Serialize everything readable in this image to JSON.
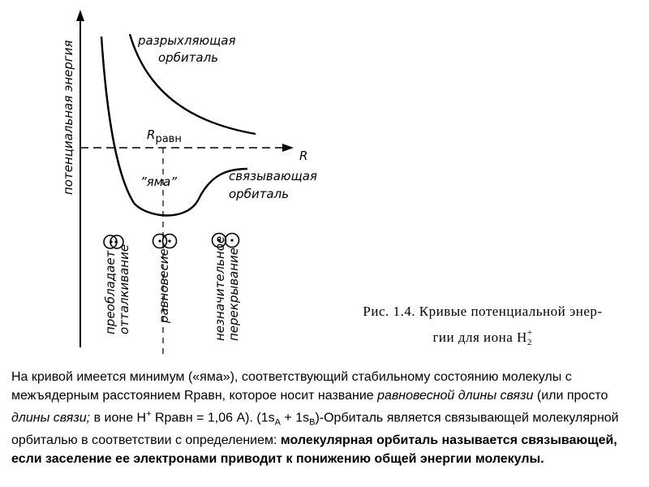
{
  "figure": {
    "y_axis_label": "потенциальная  энергия",
    "x_axis_label": "R",
    "r_eq_label": "R",
    "r_eq_sub": "равн",
    "antibonding_line1": "разрыхляющая",
    "antibonding_line2": "орбиталь",
    "bonding_line1": "связывающая",
    "bonding_line2": "орбиталь",
    "well_label": "”яма”",
    "states": [
      {
        "line1": "преобладает",
        "line2": "отталкивание"
      },
      {
        "line1": "равновесие",
        "line2": ""
      },
      {
        "line1": "незначительное",
        "line2": "перекрывание"
      }
    ],
    "caption_line1": "Рис. 1.4. Кривые потенциальной энер-",
    "caption_line2_text": "гии для иона H",
    "caption_sub": "2",
    "caption_sup": "+"
  },
  "paragraph": {
    "t1": "На кривой имеется минимум («яма»), соответствующий стабильному состоянию молекулы с межъядерным расстоянием Rравн, которое носит название ",
    "t2": "равновесной длины связи",
    "t3": " (или просто ",
    "t4": "длины связи;",
    "t5": " в ионе H",
    "t5_sup": "+",
    "t6": " Rравн = 1,06 A). (1s",
    "t6_sub": "A",
    "t7": " + 1s",
    "t7_sub": "B",
    "t8": ")-Орбиталь является связывающей молекулярной орбиталью в соответствии с определением: ",
    "t9": "молекулярная орбиталь называется связывающей, если заселение ее электронами приводит к понижению общей энергии молекулы."
  }
}
